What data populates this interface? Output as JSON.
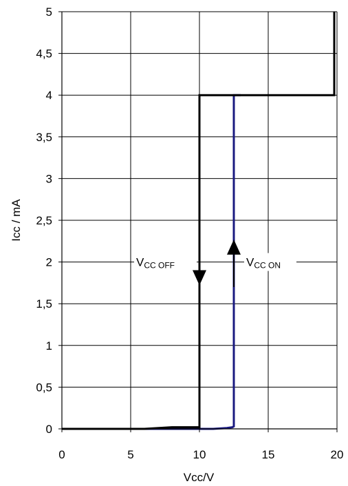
{
  "chart_data": {
    "type": "line",
    "title": "",
    "xlabel": "Vcc/V",
    "ylabel": "Icc / mA",
    "xlim": [
      0,
      20
    ],
    "ylim": [
      0,
      5
    ],
    "x_ticks": [
      0,
      5,
      10,
      15,
      20
    ],
    "x_tick_labels": [
      "0",
      "5",
      "10",
      "15",
      "20"
    ],
    "y_ticks": [
      0,
      0.5,
      1,
      1.5,
      2,
      2.5,
      3,
      3.5,
      4,
      4.5,
      5
    ],
    "y_tick_labels": [
      "0",
      "0,5",
      "1",
      "1,5",
      "2",
      "2,5",
      "3",
      "3,5",
      "4",
      "4,5",
      "5"
    ],
    "grid": true,
    "series": [
      {
        "color": "#000000",
        "x": [
          0,
          6,
          8,
          10,
          10,
          19.8,
          19.8
        ],
        "y": [
          0,
          0,
          0.02,
          0.02,
          4,
          4,
          5
        ]
      },
      {
        "color": "#1a1a80",
        "x": [
          0,
          6,
          11,
          12,
          12.4,
          12.5,
          12.5,
          13
        ],
        "y": [
          0,
          0,
          0,
          0.01,
          0.02,
          0.03,
          4,
          4
        ]
      }
    ],
    "annotations": [
      {
        "main": "V",
        "sub": "CC OFF",
        "x": 10,
        "y": 2,
        "arrow": "down",
        "arrow_x": 10,
        "arrow_from": 2.25,
        "arrow_to": 1.72
      },
      {
        "main": "V",
        "sub": "CC ON",
        "x": 12.5,
        "y": 2,
        "arrow": "up",
        "arrow_x": 12.5,
        "arrow_from": 1.7,
        "arrow_to": 2.27
      }
    ]
  }
}
